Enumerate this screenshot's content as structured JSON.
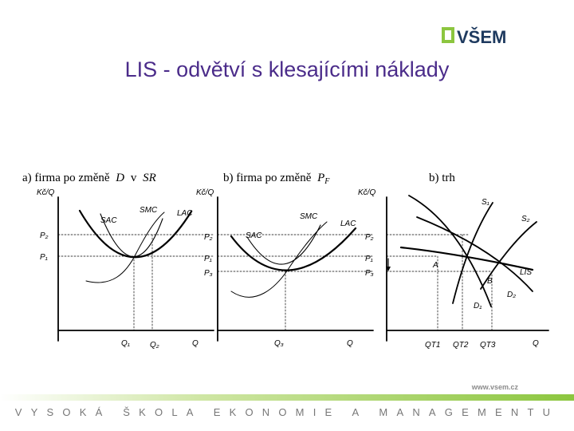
{
  "header": {
    "logo_text": "VŠEM",
    "title": "LIS - odvětví s klesajícími náklady"
  },
  "panels": [
    {
      "caption_prefix": "a)  firma po změně",
      "caption_sym1": "D",
      "caption_mid": "v",
      "caption_sym2": "SR",
      "ylabel": "Kč/Q",
      "xlabel": "Q",
      "price_labels": [
        "P₂",
        "P₁"
      ],
      "q_labels": [
        "Q₁",
        "Q₂"
      ],
      "curves": [
        "SMC",
        "LAC",
        "SAC"
      ]
    },
    {
      "caption_prefix": "b)  firma po změně",
      "caption_sym1": "P",
      "caption_sub": "F",
      "ylabel": "Kč/Q",
      "xlabel": "Q",
      "price_labels": [
        "P₂",
        "P₁",
        "P₃"
      ],
      "q_labels": [
        "Q₃"
      ],
      "curves": [
        "SMC",
        "LAC",
        "SAC"
      ]
    },
    {
      "caption_prefix": "b)  trh",
      "ylabel": "Kč/Q",
      "xlabel": "Q",
      "price_labels": [
        "P₂",
        "P₁",
        "P₃"
      ],
      "q_labels": [
        "QT1",
        "QT2",
        "QT3"
      ],
      "curves": [
        "S₁",
        "S₂",
        "LIS",
        "D₂",
        "D₁"
      ],
      "points": [
        "A",
        "B"
      ]
    }
  ],
  "footer": {
    "url": "www.vsem.cz",
    "school": "VYSOKÁ ŠKOLA EKONOMIE A MANAGEMENTU"
  },
  "colors": {
    "title": "#4b2c8a",
    "logo_green": "#8cc63f",
    "logo_dark": "#1e3a5f"
  }
}
